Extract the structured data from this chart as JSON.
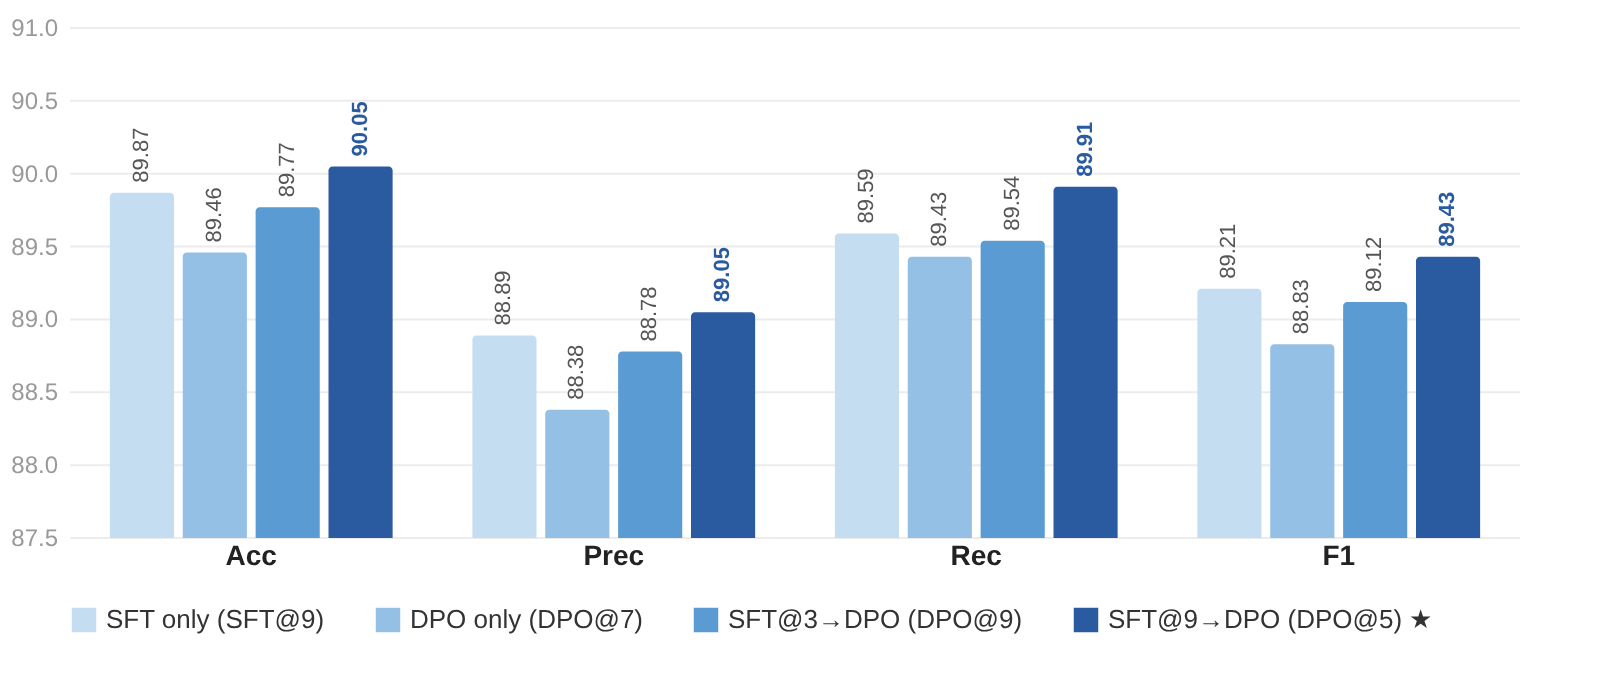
{
  "chart_data": {
    "type": "bar",
    "categories": [
      "Acc",
      "Prec",
      "Rec",
      "F1"
    ],
    "series": [
      {
        "name": "SFT only (SFT@9)",
        "color": "#c5ddf1",
        "values": [
          89.87,
          88.89,
          89.59,
          89.21
        ]
      },
      {
        "name": "DPO only (DPO@7)",
        "color": "#94c0e6",
        "values": [
          89.46,
          88.38,
          89.43,
          88.83
        ]
      },
      {
        "name": "SFT@3→DPO (DPO@9)",
        "color": "#5b9bd3",
        "values": [
          89.77,
          88.78,
          89.54,
          89.12
        ]
      },
      {
        "name": "SFT@9→DPO (DPO@5) ★",
        "color": "#2a5ba0",
        "values": [
          90.05,
          89.05,
          89.91,
          89.43
        ]
      }
    ],
    "ylim": [
      87.5,
      91.0
    ],
    "yticks": [
      {
        "value": 87.5,
        "label": "87.5"
      },
      {
        "value": 88,
        "label": "88.0"
      },
      {
        "value": 88.5,
        "label": "88.5"
      },
      {
        "value": 89,
        "label": "89.0"
      },
      {
        "value": 89.5,
        "label": "89.5"
      },
      {
        "value": 90,
        "label": "90.0"
      },
      {
        "value": 90.5,
        "label": "90.5"
      },
      {
        "value": 91,
        "label": "91.0"
      }
    ],
    "grid": "y",
    "legend": "bottom",
    "data_labels": true
  }
}
